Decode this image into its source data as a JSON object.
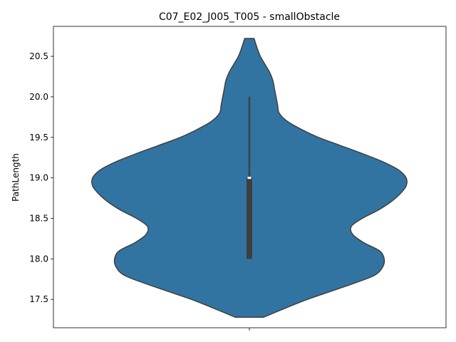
{
  "chart_data": {
    "type": "violin",
    "title": "C07_E02_J005_T005 - smallObstacle",
    "xlabel": "",
    "ylabel": "PathLength",
    "ylim": [
      17.15,
      20.87
    ],
    "yticks": [
      17.5,
      18.0,
      18.5,
      19.0,
      19.5,
      20.0,
      20.5
    ],
    "ytick_labels": [
      "17.5",
      "18.0",
      "18.5",
      "19.0",
      "19.5",
      "20.0",
      "20.5"
    ],
    "x_categories": [
      ""
    ],
    "grid": false,
    "colors": {
      "body": "#3274a1",
      "edge": "#3f3f3f",
      "box": "#3f3f3f",
      "median": "#ffffff"
    },
    "density": {
      "y": [
        17.28,
        17.4,
        17.5,
        17.6,
        17.7,
        17.8,
        17.9,
        18.0,
        18.1,
        18.2,
        18.3,
        18.4,
        18.5,
        18.6,
        18.7,
        18.8,
        18.9,
        19.0,
        19.1,
        19.2,
        19.3,
        19.4,
        19.5,
        19.6,
        19.7,
        19.8,
        19.9,
        20.0,
        20.1,
        20.2,
        20.3,
        20.4,
        20.5,
        20.6,
        20.72
      ],
      "half_width": [
        0.09,
        0.24,
        0.37,
        0.52,
        0.67,
        0.8,
        0.85,
        0.86,
        0.83,
        0.73,
        0.66,
        0.65,
        0.72,
        0.82,
        0.9,
        0.96,
        1.0,
        1.0,
        0.95,
        0.85,
        0.72,
        0.58,
        0.44,
        0.33,
        0.24,
        0.19,
        0.18,
        0.17,
        0.16,
        0.15,
        0.13,
        0.1,
        0.07,
        0.05,
        0.03
      ]
    },
    "box": {
      "q1": 18.0,
      "median": 19.0,
      "q3": 19.0,
      "whisker_low": 18.0,
      "whisker_high": 20.0
    }
  }
}
